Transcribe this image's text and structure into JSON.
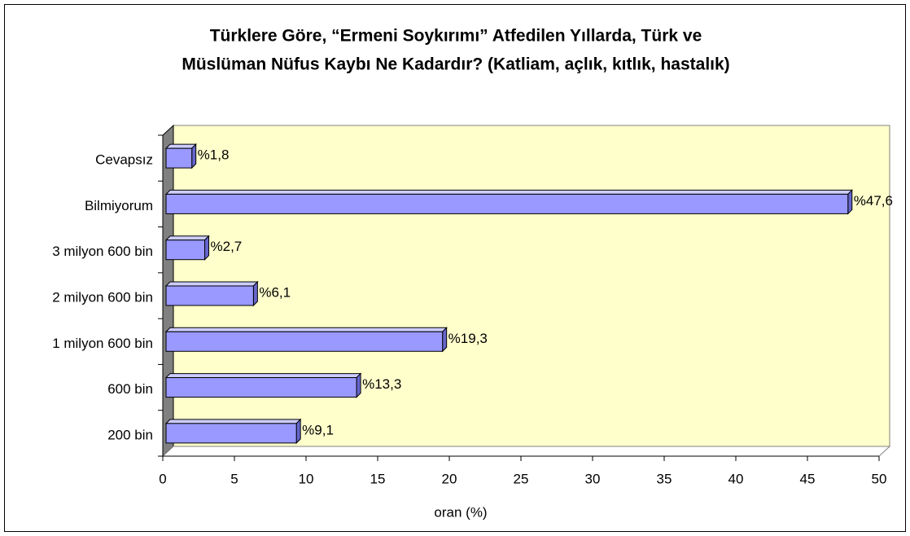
{
  "chart_data": {
    "type": "bar",
    "orientation": "horizontal",
    "title": [
      "Türklere Göre,  “Ermeni Soykırımı” Atfedilen Yıllarda, Türk ve",
      "Müslüman Nüfus Kaybı Ne Kadardır? (Katliam, açlık, kıtlık, hastalık)"
    ],
    "x_label": "oran (%)",
    "categories": [
      "200 bin",
      "600 bin",
      "1 milyon 600 bin",
      "2 milyon 600 bin",
      "3 milyon 600 bin",
      "Bilmiyorum",
      "Cevapsız"
    ],
    "values": [
      9.1,
      13.3,
      19.3,
      6.1,
      2.7,
      47.6,
      1.8
    ],
    "value_labels": [
      "%9,1",
      "%13,3",
      "%19,3",
      "%6,1",
      "%2,7",
      "%47,6",
      "%1,8"
    ],
    "color": "#9999ff",
    "xlim": [
      0,
      50
    ],
    "xticks": [
      0,
      5,
      10,
      15,
      20,
      25,
      30,
      35,
      40,
      45,
      50
    ],
    "wall_color": "#ffffcc"
  }
}
